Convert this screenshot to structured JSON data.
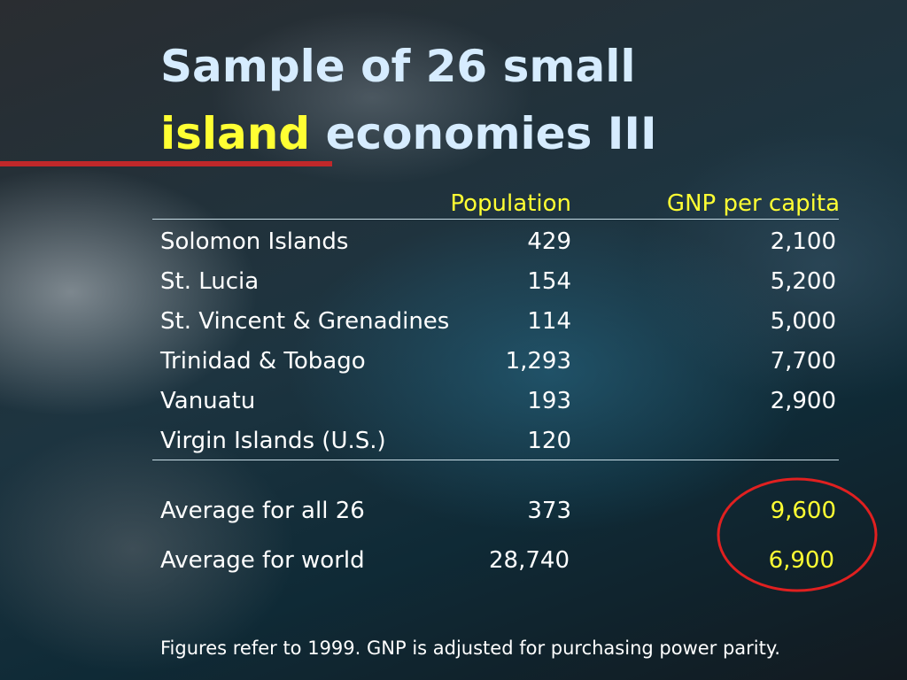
{
  "title": {
    "line1": "Sample of 26 small",
    "highlight": "island",
    "rest": "economies III"
  },
  "table": {
    "headers": [
      "Population",
      "GNP per capita"
    ],
    "rows": [
      [
        "Solomon Islands",
        "429",
        "2,100"
      ],
      [
        "St. Lucia",
        "154",
        "5,200"
      ],
      [
        "St. Vincent & Grenadines",
        "114",
        "5,000"
      ],
      [
        "Trinidad & Tobago",
        "1,293",
        "7,700"
      ],
      [
        "Vanuatu",
        "193",
        "2,900"
      ],
      [
        "Virgin Islands (U.S.)",
        "120",
        null
      ]
    ],
    "averages": [
      [
        "Average for all 26",
        "373",
        "9,600"
      ],
      [
        "Average for world",
        "28,740",
        "6,900"
      ]
    ]
  },
  "footnote": "Figures refer to 1999. GNP is adjusted for purchasing power parity."
}
